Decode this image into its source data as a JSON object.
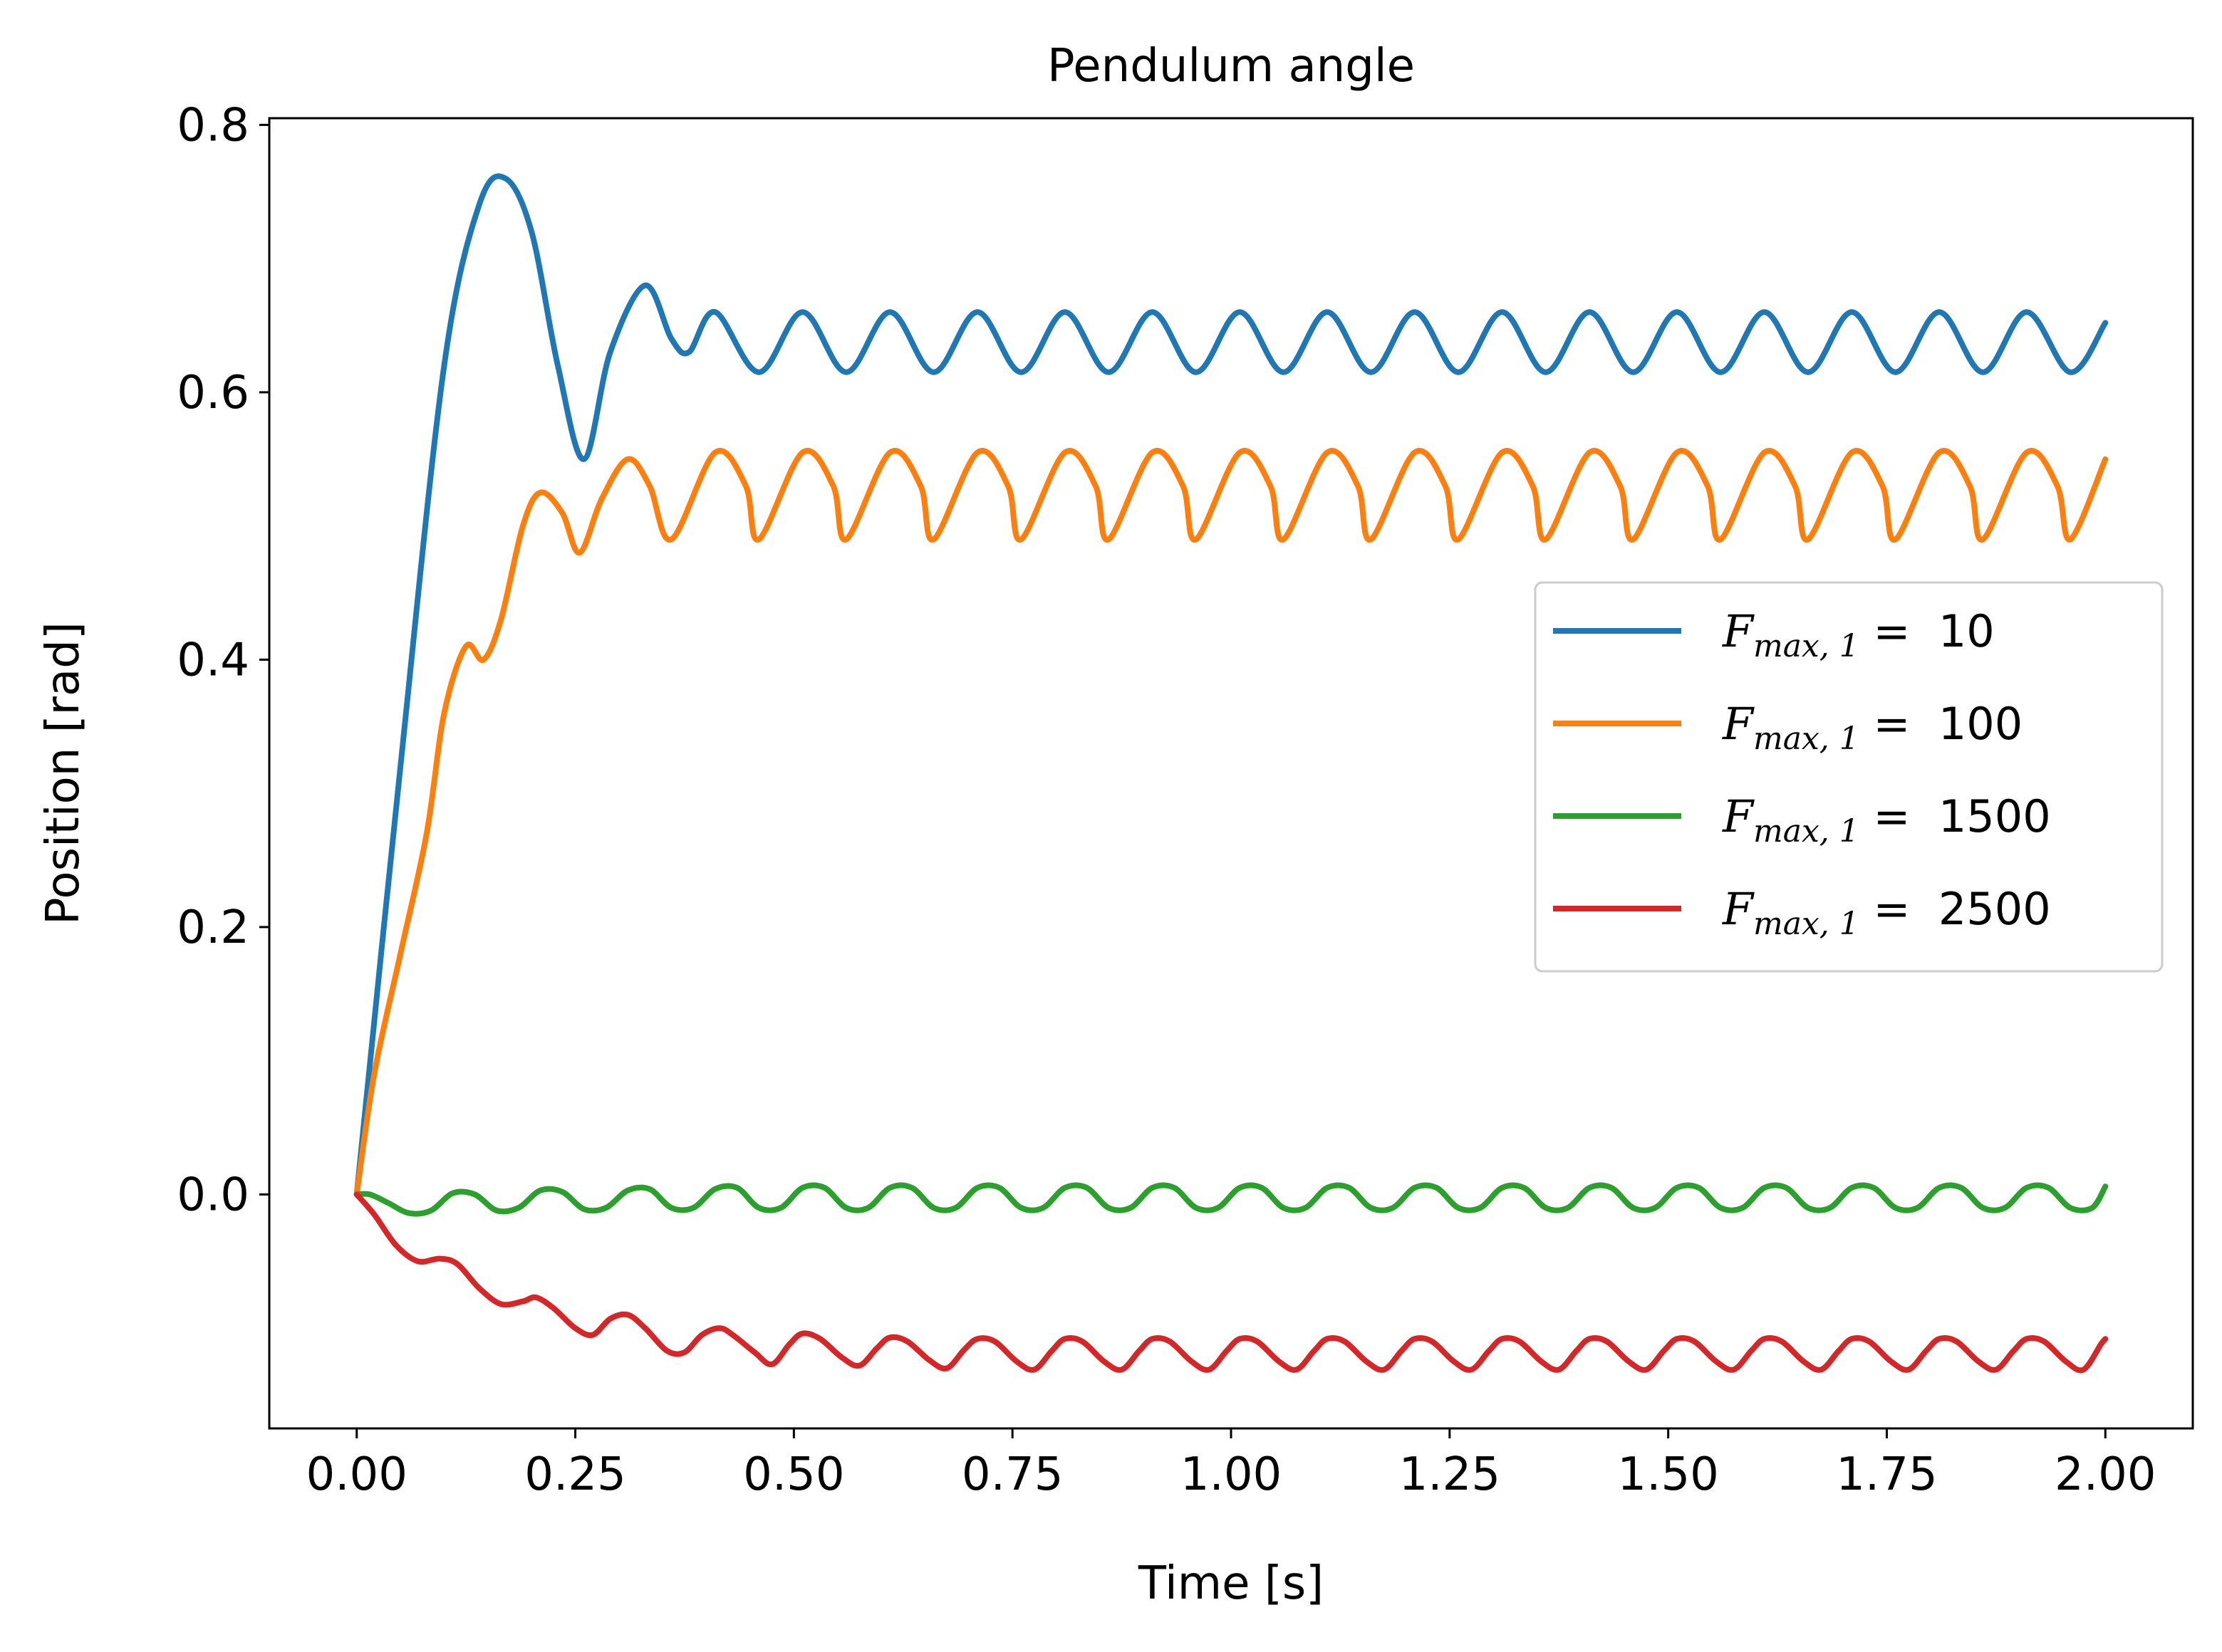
{
  "chart_data": {
    "type": "line",
    "title": "Pendulum angle",
    "xlabel": "Time [s]",
    "ylabel": "Position [rad]",
    "xlim": [
      -0.1,
      2.1
    ],
    "ylim": [
      -0.175,
      0.805
    ],
    "xticks": [
      "0.00",
      "0.25",
      "0.50",
      "0.75",
      "1.00",
      "1.25",
      "1.50",
      "1.75",
      "2.00"
    ],
    "yticks": [
      "0.0",
      "0.2",
      "0.4",
      "0.6",
      "0.8"
    ],
    "grid": false,
    "legend_position": "center-right",
    "legend_prefix": "F",
    "legend_subscript": "max, 1",
    "legend_equals": " =  ",
    "series": [
      {
        "name": "10",
        "color": "#1f77b4",
        "x": [
          0,
          0.05,
          0.1,
          0.14,
          0.17,
          0.2,
          0.23,
          0.26,
          0.29,
          0.33,
          0.36,
          0.38,
          0.41,
          0.46,
          0.51,
          0.56,
          0.61,
          0.66,
          0.71,
          0.76,
          0.81,
          0.86,
          0.91,
          0.96,
          1.01,
          1.06,
          1.11,
          1.16,
          1.21,
          1.26,
          1.31,
          1.36,
          1.41,
          1.46,
          1.51,
          1.56,
          1.61,
          1.66,
          1.71,
          1.76,
          1.81,
          1.86,
          1.91,
          1.96,
          2.0
        ],
        "y": [
          0,
          0.32,
          0.62,
          0.74,
          0.76,
          0.72,
          0.62,
          0.55,
          0.63,
          0.68,
          0.64,
          0.63,
          0.66,
          0.615,
          0.66,
          0.615,
          0.66,
          0.615,
          0.66,
          0.615,
          0.66,
          0.615,
          0.66,
          0.615,
          0.66,
          0.615,
          0.66,
          0.615,
          0.66,
          0.615,
          0.66,
          0.615,
          0.66,
          0.615,
          0.66,
          0.615,
          0.66,
          0.615,
          0.66,
          0.615,
          0.66,
          0.615,
          0.66,
          0.615,
          0.652
        ]
      },
      {
        "name": "100",
        "color": "#ff7f0e",
        "x": [
          0,
          0.02,
          0.05,
          0.08,
          0.1,
          0.125,
          0.145,
          0.165,
          0.19,
          0.21,
          0.235,
          0.255,
          0.28,
          0.31,
          0.335,
          0.36,
          0.41,
          0.445,
          0.46,
          0.51,
          0.545,
          0.56,
          0.61,
          0.645,
          0.66,
          0.71,
          0.745,
          0.76,
          0.81,
          0.845,
          0.86,
          0.91,
          0.945,
          0.96,
          1.01,
          1.045,
          1.06,
          1.11,
          1.145,
          1.16,
          1.21,
          1.245,
          1.26,
          1.31,
          1.345,
          1.36,
          1.41,
          1.445,
          1.46,
          1.51,
          1.545,
          1.56,
          1.61,
          1.645,
          1.66,
          1.71,
          1.745,
          1.76,
          1.81,
          1.845,
          1.86,
          1.91,
          1.945,
          1.96,
          2.0
        ],
        "y": [
          0,
          0.09,
          0.18,
          0.27,
          0.36,
          0.41,
          0.4,
          0.43,
          0.5,
          0.525,
          0.51,
          0.48,
          0.52,
          0.55,
          0.53,
          0.49,
          0.555,
          0.53,
          0.49,
          0.555,
          0.53,
          0.49,
          0.555,
          0.53,
          0.49,
          0.555,
          0.53,
          0.49,
          0.555,
          0.53,
          0.49,
          0.555,
          0.53,
          0.49,
          0.555,
          0.53,
          0.49,
          0.555,
          0.53,
          0.49,
          0.555,
          0.53,
          0.49,
          0.555,
          0.53,
          0.49,
          0.555,
          0.53,
          0.49,
          0.555,
          0.53,
          0.49,
          0.555,
          0.53,
          0.49,
          0.555,
          0.53,
          0.49,
          0.555,
          0.53,
          0.49,
          0.555,
          0.53,
          0.49,
          0.55
        ]
      },
      {
        "name": "1500",
        "color": "#2ca02c",
        "x": [
          0,
          0.015,
          0.035,
          0.06,
          0.085,
          0.11,
          0.135,
          0.16,
          0.185,
          0.21,
          0.235,
          0.26,
          0.285,
          0.31,
          0.335,
          0.36,
          0.385,
          0.41,
          0.435,
          0.46,
          0.485,
          0.51,
          0.535,
          0.56,
          0.585,
          0.61,
          0.635,
          0.66,
          0.685,
          0.71,
          0.735,
          0.76,
          0.785,
          0.81,
          0.835,
          0.86,
          0.885,
          0.91,
          0.935,
          0.96,
          0.985,
          1.01,
          1.035,
          1.06,
          1.085,
          1.11,
          1.135,
          1.16,
          1.185,
          1.21,
          1.235,
          1.26,
          1.285,
          1.31,
          1.335,
          1.36,
          1.385,
          1.41,
          1.435,
          1.46,
          1.485,
          1.51,
          1.535,
          1.56,
          1.585,
          1.61,
          1.635,
          1.66,
          1.685,
          1.71,
          1.735,
          1.76,
          1.785,
          1.81,
          1.835,
          1.86,
          1.885,
          1.91,
          1.935,
          1.96,
          1.985,
          2.0
        ],
        "y": [
          0,
          0.0,
          -0.006,
          -0.014,
          -0.012,
          0.001,
          0.0,
          -0.012,
          -0.01,
          0.003,
          0.002,
          -0.011,
          -0.01,
          0.003,
          0.004,
          -0.01,
          -0.01,
          0.004,
          0.005,
          -0.01,
          -0.01,
          0.005,
          0.005,
          -0.01,
          -0.01,
          0.005,
          0.005,
          -0.01,
          -0.01,
          0.005,
          0.005,
          -0.01,
          -0.01,
          0.005,
          0.005,
          -0.01,
          -0.01,
          0.005,
          0.005,
          -0.01,
          -0.01,
          0.005,
          0.005,
          -0.01,
          -0.01,
          0.005,
          0.005,
          -0.01,
          -0.01,
          0.005,
          0.005,
          -0.01,
          -0.01,
          0.005,
          0.005,
          -0.01,
          -0.01,
          0.005,
          0.005,
          -0.01,
          -0.01,
          0.005,
          0.005,
          -0.01,
          -0.01,
          0.005,
          0.005,
          -0.01,
          -0.01,
          0.005,
          0.005,
          -0.01,
          -0.01,
          0.005,
          0.005,
          -0.01,
          -0.01,
          0.005,
          0.005,
          -0.01,
          -0.01,
          0.006
        ]
      },
      {
        "name": "2500",
        "color": "#d62728",
        "x": [
          0,
          0.02,
          0.045,
          0.07,
          0.095,
          0.115,
          0.14,
          0.165,
          0.19,
          0.205,
          0.225,
          0.25,
          0.27,
          0.29,
          0.31,
          0.33,
          0.355,
          0.375,
          0.395,
          0.415,
          0.43,
          0.455,
          0.475,
          0.495,
          0.51,
          0.53,
          0.555,
          0.575,
          0.595,
          0.61,
          0.63,
          0.655,
          0.675,
          0.695,
          0.71,
          0.73,
          0.755,
          0.775,
          0.795,
          0.81,
          0.83,
          0.855,
          0.875,
          0.895,
          0.91,
          0.93,
          0.955,
          0.975,
          0.995,
          1.01,
          1.03,
          1.055,
          1.075,
          1.095,
          1.11,
          1.13,
          1.155,
          1.175,
          1.195,
          1.21,
          1.23,
          1.255,
          1.275,
          1.295,
          1.31,
          1.33,
          1.355,
          1.375,
          1.395,
          1.41,
          1.43,
          1.455,
          1.475,
          1.495,
          1.51,
          1.53,
          1.555,
          1.575,
          1.595,
          1.61,
          1.63,
          1.655,
          1.675,
          1.695,
          1.71,
          1.73,
          1.755,
          1.775,
          1.795,
          1.81,
          1.83,
          1.855,
          1.875,
          1.895,
          1.91,
          1.93,
          1.955,
          1.975,
          1.995,
          2.0
        ],
        "y": [
          0,
          -0.015,
          -0.038,
          -0.05,
          -0.048,
          -0.052,
          -0.07,
          -0.082,
          -0.08,
          -0.077,
          -0.085,
          -0.1,
          -0.105,
          -0.093,
          -0.09,
          -0.1,
          -0.117,
          -0.118,
          -0.105,
          -0.1,
          -0.105,
          -0.118,
          -0.127,
          -0.112,
          -0.104,
          -0.108,
          -0.122,
          -0.128,
          -0.115,
          -0.107,
          -0.11,
          -0.124,
          -0.13,
          -0.116,
          -0.108,
          -0.11,
          -0.125,
          -0.131,
          -0.117,
          -0.108,
          -0.11,
          -0.125,
          -0.131,
          -0.117,
          -0.108,
          -0.11,
          -0.125,
          -0.131,
          -0.117,
          -0.108,
          -0.11,
          -0.125,
          -0.131,
          -0.117,
          -0.108,
          -0.11,
          -0.125,
          -0.131,
          -0.117,
          -0.108,
          -0.11,
          -0.125,
          -0.131,
          -0.117,
          -0.108,
          -0.11,
          -0.125,
          -0.131,
          -0.117,
          -0.108,
          -0.11,
          -0.125,
          -0.131,
          -0.117,
          -0.108,
          -0.11,
          -0.125,
          -0.131,
          -0.117,
          -0.108,
          -0.11,
          -0.125,
          -0.131,
          -0.117,
          -0.108,
          -0.11,
          -0.125,
          -0.131,
          -0.117,
          -0.108,
          -0.11,
          -0.125,
          -0.131,
          -0.117,
          -0.108,
          -0.11,
          -0.125,
          -0.131,
          -0.112,
          -0.108
        ]
      }
    ]
  }
}
